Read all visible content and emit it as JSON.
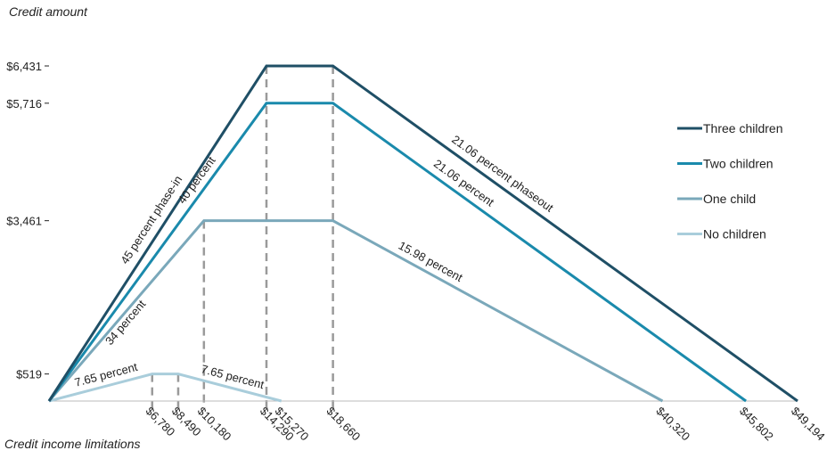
{
  "chart_data": {
    "type": "line",
    "ylabel": "Credit amount",
    "xlabel": "Credit income limitations",
    "x_ticks": [
      {
        "value": 6780,
        "label": "$6,780"
      },
      {
        "value": 8490,
        "label": "$8,490"
      },
      {
        "value": 10180,
        "label": "$10,180"
      },
      {
        "value": 14290,
        "label": "$14,290"
      },
      {
        "value": 15270,
        "label": "$15,270"
      },
      {
        "value": 18660,
        "label": "$18,660"
      },
      {
        "value": 40320,
        "label": "$40,320"
      },
      {
        "value": 45802,
        "label": "$45,802"
      },
      {
        "value": 49194,
        "label": "$49,194"
      }
    ],
    "y_ticks": [
      {
        "value": 519,
        "label": "$519"
      },
      {
        "value": 3461,
        "label": "$3,461"
      },
      {
        "value": 5716,
        "label": "$5,716"
      },
      {
        "value": 6431,
        "label": "$6,431"
      }
    ],
    "xlim": [
      0,
      49194
    ],
    "ylim": [
      0,
      6431
    ],
    "legend_position": "right",
    "series": [
      {
        "name": "Three children",
        "color": "#1f4f66",
        "points": [
          [
            0,
            0
          ],
          [
            14290,
            6431
          ],
          [
            18660,
            6431
          ],
          [
            49194,
            0
          ]
        ]
      },
      {
        "name": "Two children",
        "color": "#1a8aac",
        "points": [
          [
            0,
            0
          ],
          [
            14290,
            5716
          ],
          [
            18660,
            5716
          ],
          [
            45802,
            0
          ]
        ]
      },
      {
        "name": "One child",
        "color": "#7aa8ba",
        "points": [
          [
            0,
            0
          ],
          [
            10180,
            3461
          ],
          [
            18660,
            3461
          ],
          [
            40320,
            0
          ]
        ]
      },
      {
        "name": "No children",
        "color": "#a9cddb",
        "points": [
          [
            0,
            0
          ],
          [
            6780,
            519
          ],
          [
            8490,
            519
          ],
          [
            15270,
            0
          ]
        ]
      }
    ],
    "dashed_markers": [
      {
        "x": 6780,
        "y": 519
      },
      {
        "x": 8490,
        "y": 519
      },
      {
        "x": 10180,
        "y": 3461
      },
      {
        "x": 14290,
        "y": 6431
      },
      {
        "x": 18660,
        "y": 6431
      }
    ],
    "annotations": [
      {
        "text": "45 percent phase-in",
        "series": 0,
        "segment": 0
      },
      {
        "text": "40 percent",
        "series": 1,
        "segment": 0
      },
      {
        "text": "34 percent",
        "series": 2,
        "segment": 0
      },
      {
        "text": "7.65 percent",
        "series": 3,
        "segment": 0
      },
      {
        "text": "21.06 percent phaseout",
        "series": 0,
        "segment": 2
      },
      {
        "text": "21.06 percent",
        "series": 1,
        "segment": 2
      },
      {
        "text": "15.98 percent",
        "series": 2,
        "segment": 2
      },
      {
        "text": "7.65 percent",
        "series": 3,
        "segment": 2
      }
    ]
  }
}
